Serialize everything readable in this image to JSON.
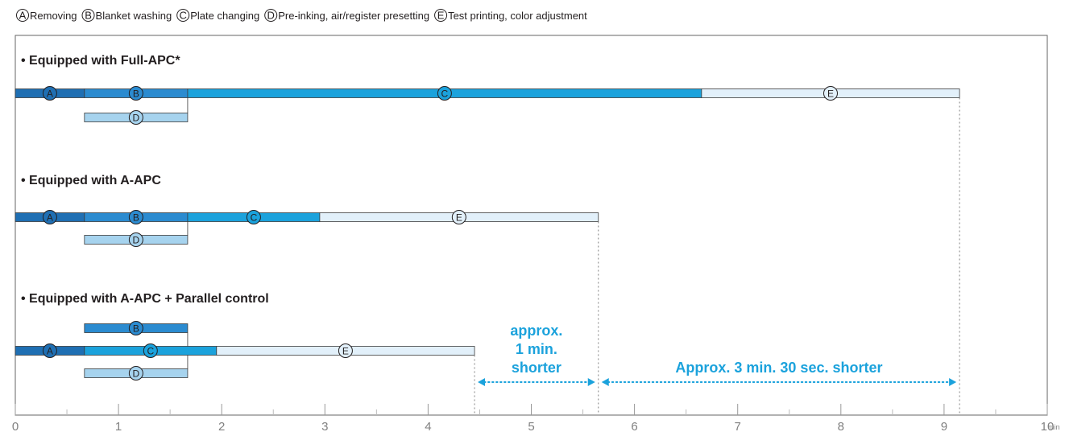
{
  "colors": {
    "A": "#1f6fb3",
    "B": "#2b8bd0",
    "C": "#1ba2dc",
    "D": "#a6d3ee",
    "E": "#e2f0fa",
    "outline": "#3a3a3a",
    "axis": "#666666",
    "annotation": "#1ba2dc"
  },
  "legend": [
    {
      "key": "A",
      "label": "Removing"
    },
    {
      "key": "B",
      "label": "Blanket washing"
    },
    {
      "key": "C",
      "label": "Plate changing"
    },
    {
      "key": "D",
      "label": "Pre-inking, air/register presetting"
    },
    {
      "key": "E",
      "label": "Test printing, color adjustment"
    }
  ],
  "chart_data": {
    "type": "bar",
    "orientation": "horizontal-stacked-timeline",
    "x_unit": "min",
    "xlim": [
      0,
      10
    ],
    "x_ticks": [
      0,
      1,
      2,
      3,
      4,
      5,
      6,
      7,
      8,
      9,
      10
    ],
    "grid": false,
    "sections": [
      {
        "title": "• Equipped with Full-APC*",
        "rows": [
          [
            {
              "key": "A",
              "start": 0,
              "end": 0.67
            },
            {
              "key": "B",
              "start": 0.67,
              "end": 1.67
            },
            {
              "key": "C",
              "start": 1.67,
              "end": 6.65
            },
            {
              "key": "E",
              "start": 6.65,
              "end": 9.15
            }
          ],
          [
            {
              "key": "D",
              "start": 0.67,
              "end": 1.67
            }
          ]
        ]
      },
      {
        "title": "• Equipped with A-APC",
        "rows": [
          [
            {
              "key": "A",
              "start": 0,
              "end": 0.67
            },
            {
              "key": "B",
              "start": 0.67,
              "end": 1.67
            },
            {
              "key": "C",
              "start": 1.67,
              "end": 2.95
            },
            {
              "key": "E",
              "start": 2.95,
              "end": 5.65
            }
          ],
          [
            {
              "key": "D",
              "start": 0.67,
              "end": 1.67
            }
          ]
        ]
      },
      {
        "title": "• Equipped with A-APC + Parallel control",
        "rows": [
          [
            {
              "key": "B",
              "start": 0.67,
              "end": 1.67
            }
          ],
          [
            {
              "key": "A",
              "start": 0,
              "end": 0.67
            },
            {
              "key": "C",
              "start": 0.67,
              "end": 1.95
            },
            {
              "key": "E",
              "start": 1.95,
              "end": 4.45
            }
          ],
          [
            {
              "key": "D",
              "start": 0.67,
              "end": 1.67
            }
          ]
        ]
      }
    ],
    "annotations": [
      {
        "from": 4.45,
        "to": 5.65,
        "text": [
          "approx.",
          "1 min.",
          "shorter"
        ]
      },
      {
        "from": 5.65,
        "to": 9.15,
        "text": [
          "Approx. 3 min. 30 sec. shorter"
        ]
      }
    ]
  }
}
